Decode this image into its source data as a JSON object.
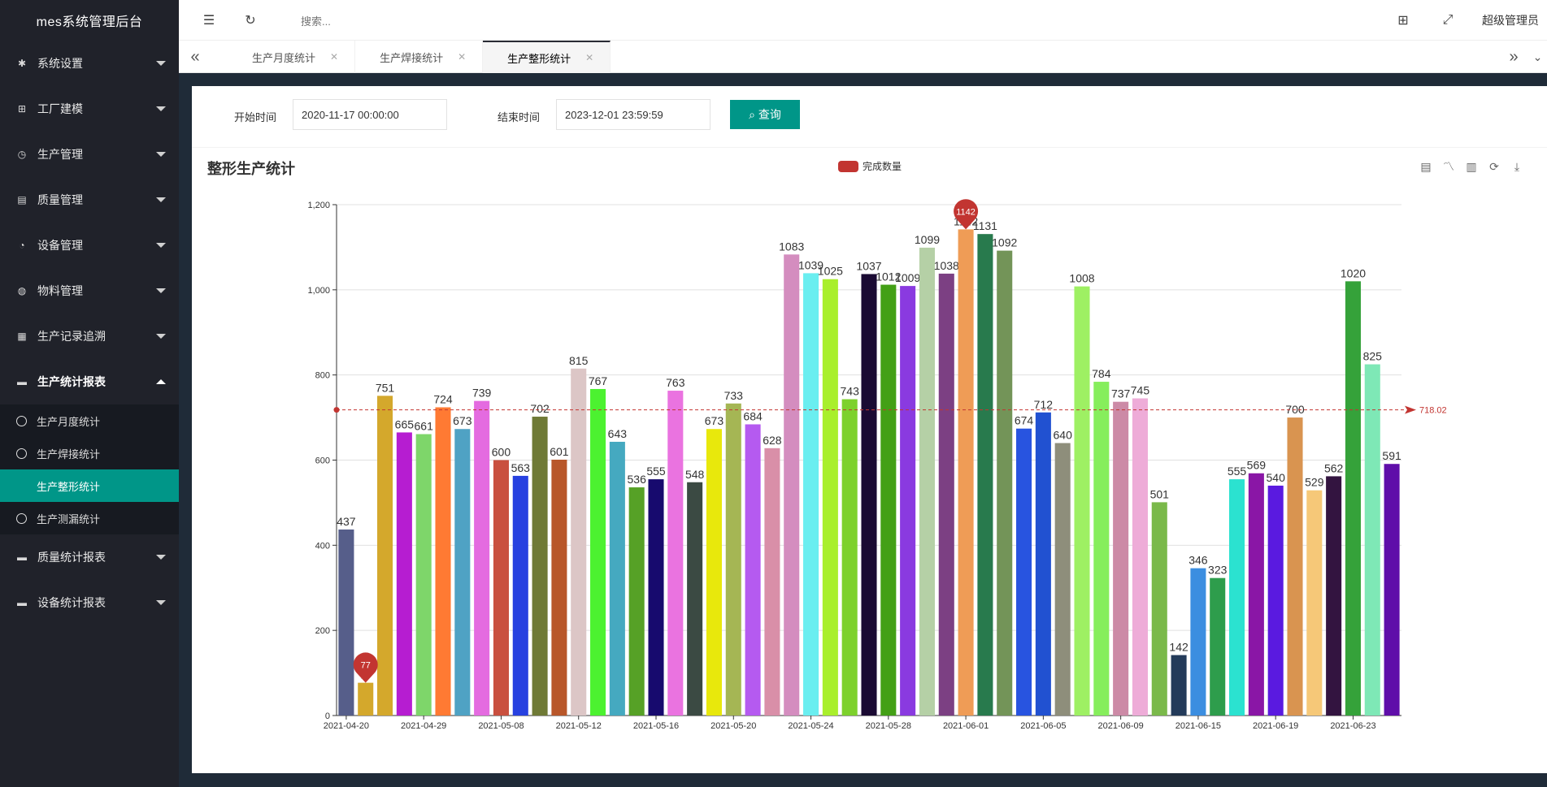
{
  "app": {
    "title": "mes系统管理后台"
  },
  "header": {
    "search_placeholder": "搜索...",
    "user": "超级管理员"
  },
  "sidebar": {
    "items": [
      {
        "label": "系统设置",
        "icon": "gear-icon"
      },
      {
        "label": "工厂建模",
        "icon": "apps-icon"
      },
      {
        "label": "生产管理",
        "icon": "clock-icon"
      },
      {
        "label": "质量管理",
        "icon": "document-icon"
      },
      {
        "label": "设备管理",
        "icon": "gauge-icon"
      },
      {
        "label": "物料管理",
        "icon": "globe-icon"
      },
      {
        "label": "生产记录追溯",
        "icon": "table-icon"
      },
      {
        "label": "生产统计报表",
        "icon": "chat-icon"
      },
      {
        "label": "质量统计报表",
        "icon": "chat-icon"
      },
      {
        "label": "设备统计报表",
        "icon": "chat-icon"
      }
    ],
    "sub_items": [
      {
        "label": "生产月度统计"
      },
      {
        "label": "生产焊接统计"
      },
      {
        "label": "生产整形统计"
      },
      {
        "label": "生产测漏统计"
      }
    ]
  },
  "tabs": [
    {
      "label": "生产月度统计"
    },
    {
      "label": "生产焊接统计"
    },
    {
      "label": "生产整形统计"
    }
  ],
  "filter": {
    "start_label": "开始时间",
    "start_value": "2020-11-17 00:00:00",
    "end_label": "结束时间",
    "end_value": "2023-12-01 23:59:59",
    "query_label": "查询"
  },
  "chart_data": {
    "type": "bar",
    "title": "整形生产统计",
    "legend": [
      "完成数量"
    ],
    "series_name": "完成数量",
    "ylim": [
      0,
      1200
    ],
    "yticks": [
      "0",
      "200",
      "400",
      "600",
      "800",
      "1,000",
      "1,200"
    ],
    "x_tick_labels": [
      "2021-04-20",
      "2021-04-29",
      "2021-05-08",
      "2021-05-12",
      "2021-05-16",
      "2021-05-20",
      "2021-05-24",
      "2021-05-28",
      "2021-06-01",
      "2021-06-05",
      "2021-06-09",
      "2021-06-15",
      "2021-06-19",
      "2021-06-23"
    ],
    "values": [
      437,
      77,
      751,
      665,
      661,
      724,
      673,
      739,
      600,
      563,
      702,
      601,
      815,
      767,
      643,
      536,
      555,
      763,
      548,
      673,
      733,
      684,
      628,
      1083,
      1039,
      1025,
      743,
      1037,
      1012,
      1009,
      1099,
      1038,
      1142,
      1131,
      1092,
      674,
      712,
      640,
      1008,
      784,
      737,
      745,
      501,
      142,
      346,
      323,
      555,
      569,
      540,
      700,
      529,
      562,
      1020,
      825,
      591
    ],
    "colors": [
      "#565e8a",
      "#d4a82c",
      "#d4a82c",
      "#b61dd1",
      "#7ed66a",
      "#ff7a33",
      "#4fa2c4",
      "#e46be0",
      "#c9503f",
      "#2741e0",
      "#6f7a36",
      "#b8572a",
      "#dcc6c6",
      "#4cf230",
      "#45a9c0",
      "#56a126",
      "#170a6e",
      "#ea73e0",
      "#3b4a43",
      "#e8e80c",
      "#a5b654",
      "#b55af0",
      "#d98fa8",
      "#d48dbf",
      "#6aeef0",
      "#a9ef2c",
      "#7dd12c",
      "#1a0a33",
      "#43a016",
      "#8a3ae0",
      "#b5d0a6",
      "#7c4083",
      "#ef9c56",
      "#287a4d",
      "#739458",
      "#2854e0",
      "#2151d1",
      "#8e8e7b",
      "#9ef063",
      "#86ee5c",
      "#cc8aa6",
      "#eeacd8",
      "#7ab94a",
      "#233b5a",
      "#3b8ee0",
      "#2e9d4c",
      "#2be2d0",
      "#8a16a6",
      "#5a1ae0",
      "#d99450",
      "#f6c878",
      "#331440",
      "#35a23a",
      "#7ee8b6",
      "#5f0ea9"
    ],
    "mark_points": [
      {
        "label": "77",
        "index": 1
      },
      {
        "label": "1142",
        "index": 32
      }
    ],
    "mark_line": {
      "label": "718.02",
      "value": 718.02
    }
  }
}
